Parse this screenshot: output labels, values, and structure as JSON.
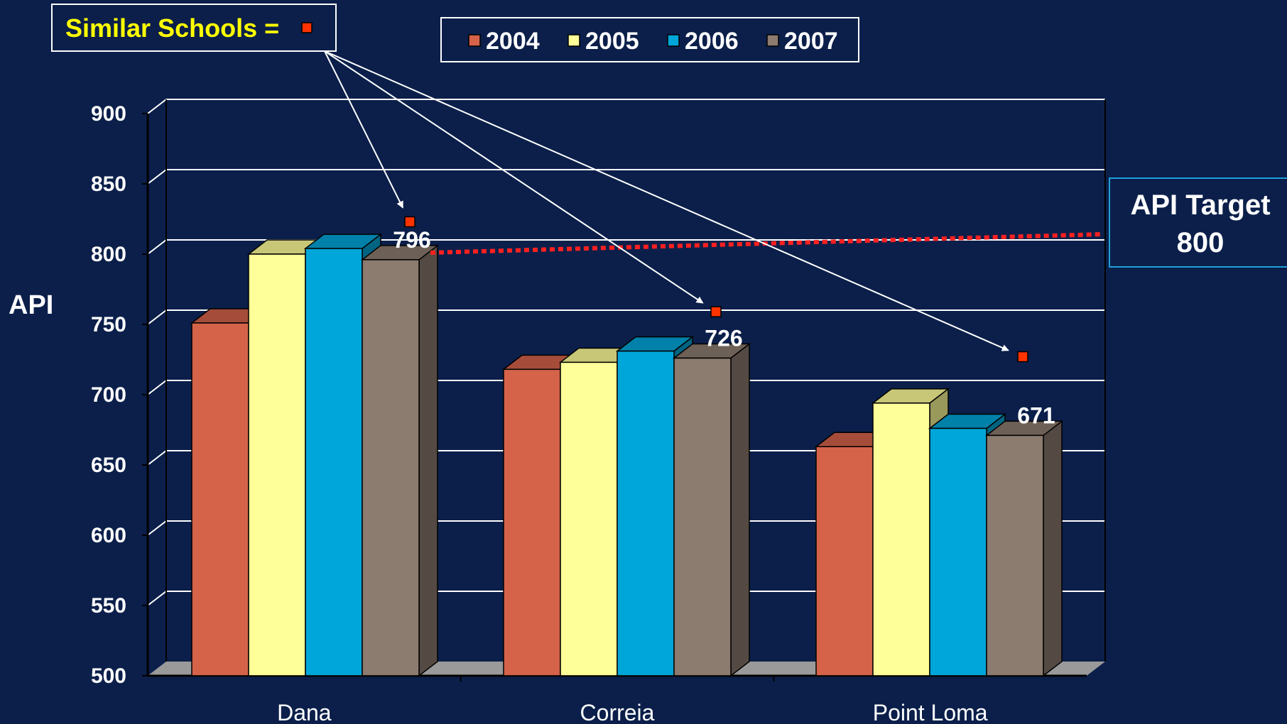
{
  "chart_data": {
    "type": "bar",
    "categories": [
      "Dana",
      "Correia",
      "Point Loma"
    ],
    "series": [
      {
        "name": "2004",
        "values": [
          751,
          718,
          663
        ],
        "color": "#d4634a"
      },
      {
        "name": "2005",
        "values": [
          800,
          723,
          694
        ],
        "color": "#ffff99"
      },
      {
        "name": "2006",
        "values": [
          804,
          731,
          676
        ],
        "color": "#00a6d9"
      },
      {
        "name": "2007",
        "values": [
          796,
          726,
          671
        ],
        "color": "#8c7b6f"
      }
    ],
    "data_labels": [
      "796",
      "726",
      "671"
    ],
    "similar_schools": [
      823,
      759,
      727
    ],
    "ylabel": "API",
    "ylim": [
      500,
      900
    ],
    "yticks": [
      "500",
      "550",
      "600",
      "650",
      "700",
      "750",
      "800",
      "850",
      "900"
    ],
    "grid": true,
    "legend_position": "top-center",
    "similar_schools_label": "Similar Schools =",
    "target": {
      "line1": "API Target",
      "line2": "800",
      "value": 800,
      "color": "#ff2020"
    }
  }
}
